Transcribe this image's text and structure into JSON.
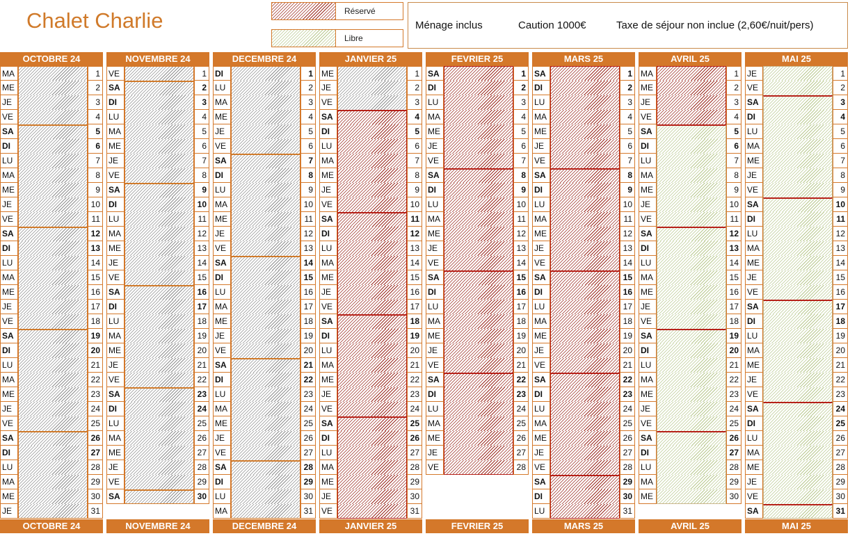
{
  "title": "Chalet Charlie",
  "legend": [
    {
      "label": "Réservé",
      "style": "reserved"
    },
    {
      "label": "Libre",
      "style": "free"
    }
  ],
  "info": {
    "menage": "Ménage inclus",
    "caution": "Caution 1000€",
    "taxe": "Taxe de séjour non inclue (2,60€/nuit/pers)"
  },
  "colors": {
    "accent": "#d4782a",
    "reserved_hatch": "#9b2a20",
    "past_hatch": "#8f8f8f",
    "free_hatch": "#b9c98f",
    "separator_red": "#b62018",
    "separator_orange": "#d07a2a"
  },
  "months": [
    {
      "name": "OCTOBRE 24",
      "start": "MA",
      "days": 31,
      "fill": "past",
      "weekStarts": [
        5,
        12,
        19,
        26
      ],
      "free": []
    },
    {
      "name": "NOVEMBRE 24",
      "start": "VE",
      "days": 30,
      "fill": "past",
      "weekStarts": [
        2,
        9,
        16,
        23,
        30
      ],
      "free": []
    },
    {
      "name": "DECEMBRE 24",
      "start": "DI",
      "days": 31,
      "fill": "past",
      "weekStarts": [
        7,
        14,
        21,
        28
      ],
      "free": []
    },
    {
      "name": "JANVIER 25",
      "start": "ME",
      "days": 31,
      "fill": "mixed",
      "pastUntil": 3,
      "weekStarts": [
        4,
        11,
        18,
        25
      ],
      "free": []
    },
    {
      "name": "FEVRIER 25",
      "start": "SA",
      "days": 28,
      "fill": "reserved",
      "weekStarts": [
        8,
        15,
        22
      ],
      "free": []
    },
    {
      "name": "MARS 25",
      "start": "SA",
      "days": 31,
      "fill": "reserved",
      "weekStarts": [
        8,
        15,
        22,
        29
      ],
      "free": []
    },
    {
      "name": "AVRIL 25",
      "start": "MA",
      "days": 30,
      "fill": "reserved",
      "weekStarts": [
        5,
        12,
        19,
        26
      ],
      "free": [
        5,
        30
      ]
    },
    {
      "name": "MAI 25",
      "start": "JE",
      "days": 31,
      "fill": "free",
      "weekStarts": [
        3,
        10,
        17,
        24,
        31
      ],
      "free": [
        1,
        31
      ]
    }
  ]
}
